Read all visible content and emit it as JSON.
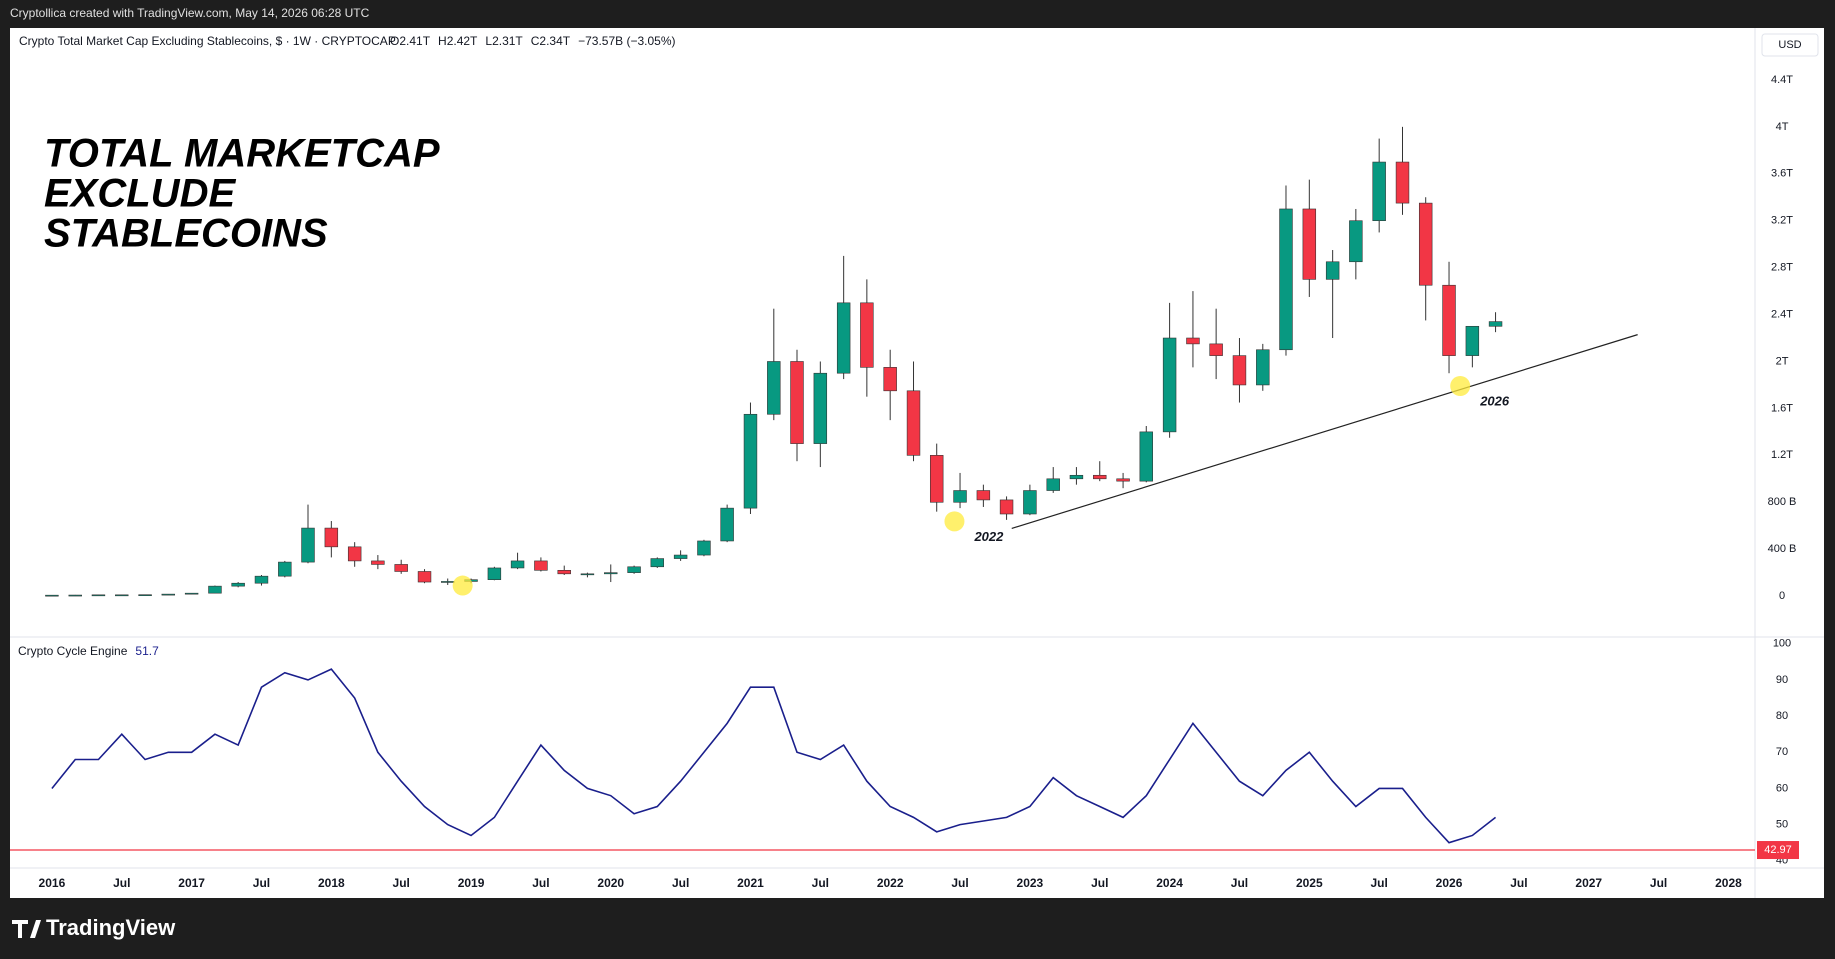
{
  "header": {
    "credit": "Cryptollica created with TradingView.com, May 14, 2026 06:28 UTC",
    "symbol": "Crypto Total Market Cap Excluding Stablecoins, $ · 1W · CRYPTOCAP",
    "ohlc": [
      "O2.41T",
      "H2.42T",
      "L2.31T",
      "C2.34T",
      "−73.57B (−3.05%)"
    ],
    "currency": "USD",
    "brand": "TradingView"
  },
  "chart_data": [
    {
      "type": "candlestick",
      "annotation_lines": [
        "TOTAL MARKETCAP",
        "EXCLUDE",
        "STABLECOINS"
      ],
      "up_color": "#089981",
      "down_color": "#f23645",
      "x": [
        2016,
        2016.167,
        2016.333,
        2016.5,
        2016.667,
        2016.833,
        2017,
        2017.167,
        2017.333,
        2017.5,
        2017.667,
        2017.833,
        2018,
        2018.167,
        2018.333,
        2018.5,
        2018.667,
        2018.833,
        2019,
        2019.167,
        2019.333,
        2019.5,
        2019.667,
        2019.833,
        2020,
        2020.167,
        2020.333,
        2020.5,
        2020.667,
        2020.833,
        2021,
        2021.167,
        2021.333,
        2021.5,
        2021.667,
        2021.833,
        2022,
        2022.167,
        2022.333,
        2022.5,
        2022.667,
        2022.833,
        2023,
        2023.167,
        2023.333,
        2023.5,
        2023.667,
        2023.833,
        2024,
        2024.167,
        2024.333,
        2024.5,
        2024.667,
        2024.833,
        2025,
        2025.167,
        2025.333,
        2025.5,
        2025.667,
        2025.833,
        2026,
        2026.167,
        2026.333
      ],
      "open": [
        7,
        8,
        9,
        11,
        11,
        12,
        17,
        25,
        85,
        110,
        170,
        290,
        580,
        420,
        300,
        270,
        210,
        120,
        125,
        140,
        240,
        300,
        220,
        190,
        190,
        200,
        250,
        320,
        350,
        470,
        750,
        1550,
        2000,
        1300,
        1900,
        2500,
        1950,
        1750,
        1200,
        800,
        900,
        820,
        700,
        900,
        1000,
        1030,
        1000,
        980,
        1400,
        2200,
        2150,
        2050,
        1800,
        2100,
        3300,
        2700,
        2850,
        3200,
        3700,
        3350,
        2650,
        2050,
        2300
      ],
      "high": [
        8,
        10,
        12,
        13,
        12,
        17,
        25,
        90,
        120,
        180,
        300,
        780,
        640,
        460,
        350,
        310,
        230,
        150,
        150,
        250,
        370,
        330,
        260,
        200,
        270,
        260,
        330,
        390,
        480,
        780,
        1650,
        2450,
        2100,
        2000,
        2900,
        2700,
        2100,
        2000,
        1300,
        1050,
        950,
        850,
        950,
        1100,
        1100,
        1150,
        1050,
        1450,
        2500,
        2600,
        2450,
        2200,
        2150,
        3500,
        3550,
        2950,
        3300,
        3900,
        4000,
        3400,
        2850,
        2300,
        2420
      ],
      "low": [
        6,
        7,
        9,
        10,
        10,
        12,
        16,
        24,
        75,
        90,
        160,
        280,
        330,
        250,
        230,
        190,
        110,
        95,
        110,
        135,
        230,
        210,
        180,
        160,
        120,
        190,
        240,
        300,
        340,
        460,
        700,
        1500,
        1150,
        1100,
        1850,
        1700,
        1500,
        1150,
        720,
        750,
        760,
        650,
        690,
        880,
        950,
        980,
        920,
        970,
        1350,
        1950,
        1850,
        1650,
        1750,
        2050,
        2550,
        2200,
        2700,
        3100,
        3250,
        2350,
        1900,
        1950,
        2250
      ],
      "close": [
        8,
        9,
        11,
        11,
        12,
        17,
        25,
        85,
        110,
        170,
        290,
        580,
        420,
        300,
        270,
        210,
        120,
        125,
        140,
        240,
        300,
        220,
        190,
        190,
        200,
        250,
        320,
        350,
        470,
        750,
        1550,
        2000,
        1300,
        1900,
        2500,
        1950,
        1750,
        1200,
        800,
        900,
        820,
        700,
        900,
        1000,
        1030,
        1000,
        980,
        1400,
        2200,
        2150,
        2050,
        1800,
        2100,
        3300,
        2700,
        2850,
        3200,
        3700,
        3350,
        2650,
        2050,
        2300,
        2340
      ],
      "xlim": [
        2015.7,
        2028.19
      ],
      "xticks": [
        {
          "value": 2016,
          "label": "2016"
        },
        {
          "value": 2016.5,
          "label": "Jul"
        },
        {
          "value": 2017,
          "label": "2017"
        },
        {
          "value": 2017.5,
          "label": "Jul"
        },
        {
          "value": 2018,
          "label": "2018"
        },
        {
          "value": 2018.5,
          "label": "Jul"
        },
        {
          "value": 2019,
          "label": "2019"
        },
        {
          "value": 2019.5,
          "label": "Jul"
        },
        {
          "value": 2020,
          "label": "2020"
        },
        {
          "value": 2020.5,
          "label": "Jul"
        },
        {
          "value": 2021,
          "label": "2021"
        },
        {
          "value": 2021.5,
          "label": "Jul"
        },
        {
          "value": 2022,
          "label": "2022"
        },
        {
          "value": 2022.5,
          "label": "Jul"
        },
        {
          "value": 2023,
          "label": "2023"
        },
        {
          "value": 2023.5,
          "label": "Jul"
        },
        {
          "value": 2024,
          "label": "2024"
        },
        {
          "value": 2024.5,
          "label": "Jul"
        },
        {
          "value": 2025,
          "label": "2025"
        },
        {
          "value": 2025.5,
          "label": "Jul"
        },
        {
          "value": 2026,
          "label": "2026"
        },
        {
          "value": 2026.5,
          "label": "Jul"
        },
        {
          "value": 2027,
          "label": "2027"
        },
        {
          "value": 2027.5,
          "label": "Jul"
        },
        {
          "value": 2028,
          "label": "2028"
        }
      ],
      "ylim": [
        -340,
        4800
      ],
      "yticks": [
        0,
        {
          "value": 400,
          "label": "400 B"
        },
        {
          "value": 800,
          "label": "800 B"
        },
        {
          "value": 1200,
          "label": "1.2T"
        },
        {
          "value": 1600,
          "label": "1.6T"
        },
        {
          "value": 2000,
          "label": "2T"
        },
        {
          "value": 2400,
          "label": "2.4T"
        },
        {
          "value": 2800,
          "label": "2.8T"
        },
        {
          "value": 3200,
          "label": "3.2T"
        },
        {
          "value": 3600,
          "label": "3.6T"
        },
        {
          "value": 4000,
          "label": "4T"
        },
        {
          "value": 4400,
          "label": "4.4T"
        }
      ],
      "trendline": {
        "x": [
          2022.87,
          2027.35
        ],
        "y": [
          577,
          2229
        ]
      },
      "markers": [
        {
          "x": 2018.94,
          "y": 90
        },
        {
          "x": 2022.46,
          "y": 637,
          "label": "2022"
        },
        {
          "x": 2026.08,
          "y": 1791,
          "label": "2026"
        }
      ],
      "grid": false
    },
    {
      "type": "line",
      "title": "Crypto Cycle Engine",
      "current_value": 51.7,
      "color": "#1a1f8c",
      "x": [
        2016,
        2016.167,
        2016.333,
        2016.5,
        2016.667,
        2016.833,
        2017,
        2017.167,
        2017.333,
        2017.5,
        2017.667,
        2017.833,
        2018,
        2018.167,
        2018.333,
        2018.5,
        2018.667,
        2018.833,
        2019,
        2019.167,
        2019.333,
        2019.5,
        2019.667,
        2019.833,
        2020,
        2020.167,
        2020.333,
        2020.5,
        2020.667,
        2020.833,
        2021,
        2021.167,
        2021.333,
        2021.5,
        2021.667,
        2021.833,
        2022,
        2022.167,
        2022.333,
        2022.5,
        2022.667,
        2022.833,
        2023,
        2023.167,
        2023.333,
        2023.5,
        2023.667,
        2023.833,
        2024,
        2024.167,
        2024.333,
        2024.5,
        2024.667,
        2024.833,
        2025,
        2025.167,
        2025.333,
        2025.5,
        2025.667,
        2025.833,
        2026,
        2026.167,
        2026.333
      ],
      "values": [
        60,
        68,
        68,
        75,
        68,
        70,
        70,
        75,
        72,
        88,
        92,
        90,
        93,
        85,
        70,
        62,
        55,
        50,
        47,
        52,
        62,
        72,
        65,
        60,
        58,
        53,
        55,
        62,
        70,
        78,
        88,
        88,
        70,
        68,
        72,
        62,
        55,
        52,
        48,
        50,
        51,
        52,
        55,
        63,
        58,
        55,
        52,
        58,
        68,
        78,
        70,
        62,
        58,
        65,
        70,
        62,
        55,
        60,
        60,
        52,
        45,
        47,
        52
      ],
      "ylim": [
        38,
        101.6
      ],
      "yticks": [
        40,
        50,
        60,
        70,
        80,
        90,
        100
      ],
      "hline": 42.97,
      "hline_color": "#f23645",
      "grid": false
    }
  ]
}
